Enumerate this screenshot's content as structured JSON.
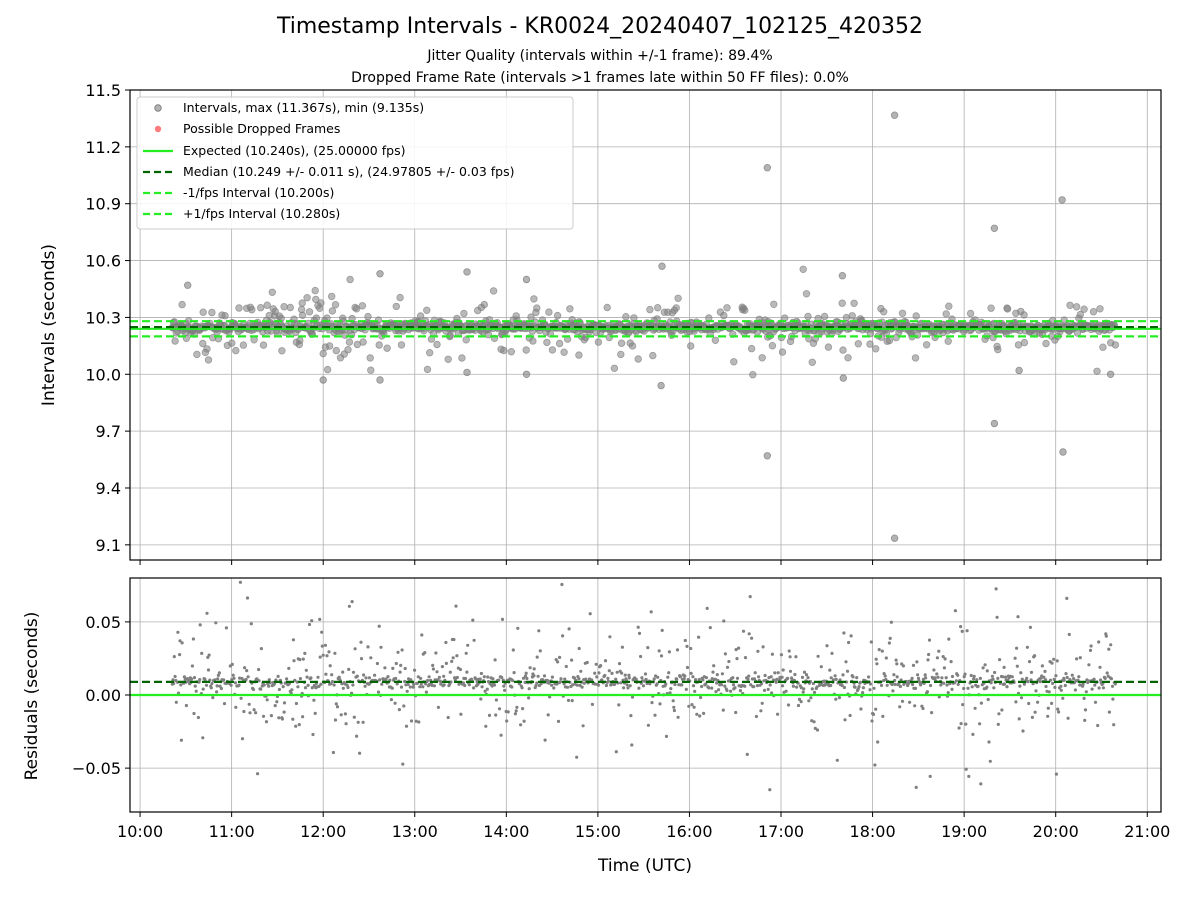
{
  "figure": {
    "title": "Timestamp Intervals - KR0024_20240407_102125_420352",
    "subtitle1": "Jitter Quality (intervals within +/-1 frame): 89.4%",
    "subtitle2": "Dropped Frame Rate (intervals >1 frames late within 50 FF files): 0.0%"
  },
  "colors": {
    "points": "#808080",
    "dropped": "#ff4444",
    "expected": "#22ee22",
    "median": "#006400",
    "interval_band": "#22ee22"
  },
  "chart_data": [
    {
      "type": "scatter",
      "panel": "top",
      "ylabel": "Intervals (seconds)",
      "ylim": [
        9.02,
        11.5
      ],
      "yticks": [
        "9.1",
        "9.4",
        "9.7",
        "10.0",
        "10.3",
        "10.6",
        "10.9",
        "11.2",
        "11.5"
      ],
      "ytick_values": [
        9.1,
        9.4,
        9.7,
        10.0,
        10.3,
        10.6,
        10.9,
        11.2,
        11.5
      ],
      "xlim_hours": [
        9.89,
        21.15
      ],
      "grid": true,
      "legend_position": "top-left",
      "legend": [
        {
          "label": "Intervals, max (11.367s), min (9.135s)",
          "marker": "dot-gray"
        },
        {
          "label": "Possible Dropped Frames",
          "marker": "dot-red"
        },
        {
          "label": "Expected (10.240s), (25.00000 fps)",
          "marker": "line-green-solid"
        },
        {
          "label": "Median (10.249 +/- 0.011 s), (24.97805 +/- 0.03 fps)",
          "marker": "line-darkgreen-dashed"
        },
        {
          "label": "-1/fps Interval (10.200s)",
          "marker": "line-green-dashed"
        },
        {
          "label": "+1/fps Interval (10.280s)",
          "marker": "line-green-dashed"
        }
      ],
      "reference_lines": {
        "expected": 10.24,
        "median": 10.249,
        "minus_interval": 10.2,
        "plus_interval": 10.28
      },
      "time_range_hours": [
        10.35,
        20.65
      ],
      "max_interval": 11.367,
      "min_interval": 9.135,
      "outliers": [
        {
          "x": 18.24,
          "y": 11.367
        },
        {
          "x": 16.85,
          "y": 11.09
        },
        {
          "x": 20.07,
          "y": 10.92
        },
        {
          "x": 19.33,
          "y": 10.77
        },
        {
          "x": 16.85,
          "y": 9.57
        },
        {
          "x": 20.08,
          "y": 9.59
        },
        {
          "x": 19.33,
          "y": 9.74
        },
        {
          "x": 18.24,
          "y": 9.135
        },
        {
          "x": 15.7,
          "y": 10.57
        },
        {
          "x": 13.57,
          "y": 10.54
        },
        {
          "x": 12.62,
          "y": 10.53
        },
        {
          "x": 17.67,
          "y": 10.52
        },
        {
          "x": 14.22,
          "y": 10.5
        },
        {
          "x": 10.52,
          "y": 10.47
        },
        {
          "x": 15.69,
          "y": 9.94
        },
        {
          "x": 14.22,
          "y": 10.0
        },
        {
          "x": 12.0,
          "y": 9.97
        },
        {
          "x": 12.62,
          "y": 9.97
        },
        {
          "x": 17.68,
          "y": 9.98
        },
        {
          "x": 13.57,
          "y": 10.01
        },
        {
          "x": 19.6,
          "y": 10.02
        },
        {
          "x": 20.6,
          "y": 10.0
        }
      ]
    },
    {
      "type": "scatter",
      "panel": "bottom",
      "xlabel": "Time (UTC)",
      "ylabel": "Residuals (seconds)",
      "ylim": [
        -0.08,
        0.08
      ],
      "yticks": [
        "−0.05",
        "0.00",
        "0.05"
      ],
      "ytick_values": [
        -0.05,
        0.0,
        0.05
      ],
      "xticks": [
        "10:00",
        "11:00",
        "12:00",
        "13:00",
        "14:00",
        "15:00",
        "16:00",
        "17:00",
        "18:00",
        "19:00",
        "20:00",
        "21:00"
      ],
      "xtick_values": [
        10,
        11,
        12,
        13,
        14,
        15,
        16,
        17,
        18,
        19,
        20,
        21
      ],
      "xlim_hours": [
        9.89,
        21.15
      ],
      "grid": true,
      "reference_lines": {
        "zero": 0.0,
        "median_offset": 0.009
      },
      "time_range_hours": [
        10.35,
        20.65
      ]
    }
  ]
}
